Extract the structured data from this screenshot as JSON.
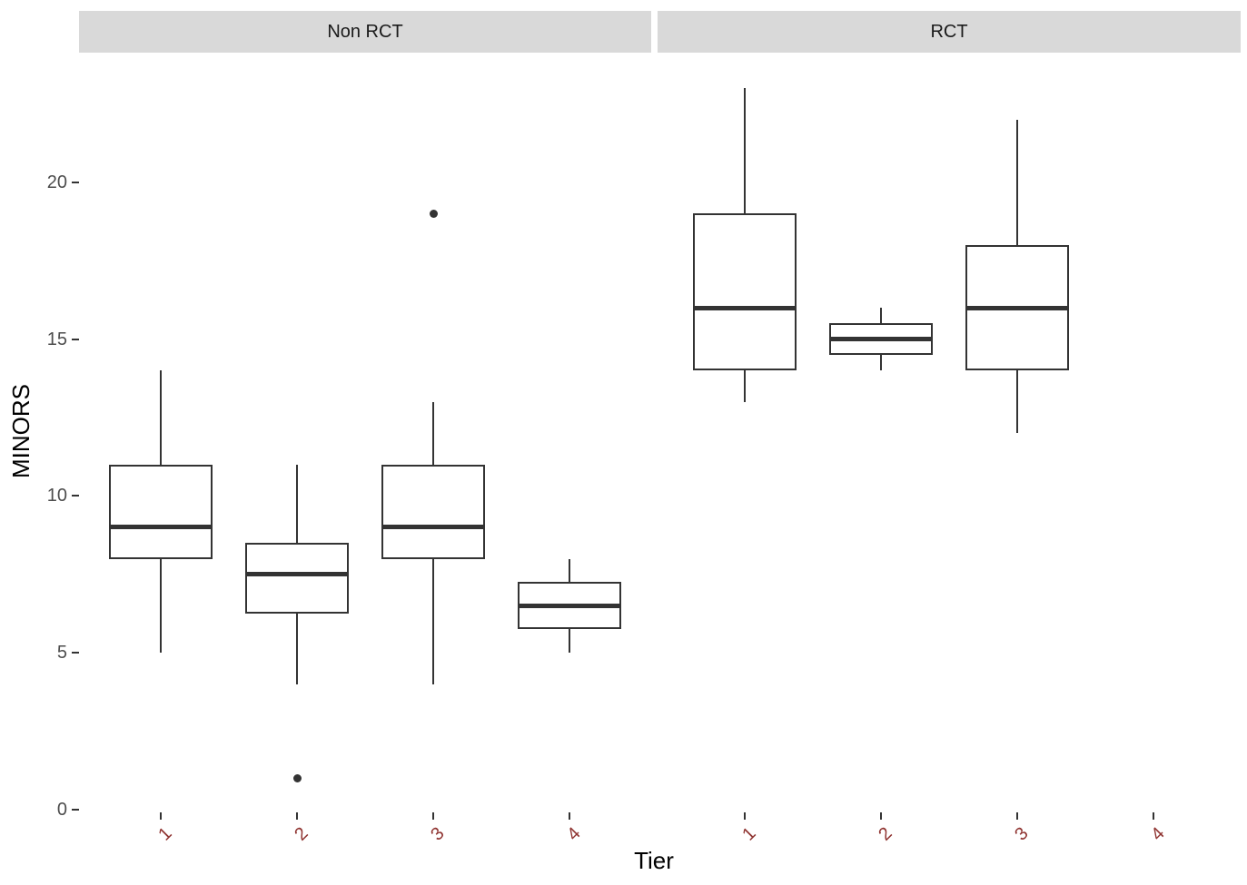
{
  "figure": {
    "background": "#ffffff",
    "strip_background": "#d9d9d9",
    "strip_text_color": "#1a1a1a",
    "axis_number_color": "#4d4d4d",
    "tier_label_color": "#8f3330",
    "box_stroke_color": "#333333",
    "title_color": "#000000"
  },
  "chart_data": {
    "type": "boxplot",
    "title": "",
    "xlabel": "Tier",
    "ylabel": "MINORS",
    "y_ticks": [
      0,
      5,
      10,
      15,
      20
    ],
    "ylim": [
      0,
      23.5
    ],
    "grid": "off",
    "legend": "none",
    "facets": [
      {
        "label": "Non RCT",
        "boxes": [
          {
            "tier": "1",
            "min": 5,
            "q1": 8,
            "median": 9,
            "q3": 11,
            "max": 14,
            "outliers": []
          },
          {
            "tier": "2",
            "min": 4,
            "q1": 6.25,
            "median": 7.5,
            "q3": 8.5,
            "max": 11,
            "outliers": [
              1
            ]
          },
          {
            "tier": "3",
            "min": 4,
            "q1": 8,
            "median": 9,
            "q3": 11,
            "max": 13,
            "outliers": [
              19
            ]
          },
          {
            "tier": "4",
            "min": 5,
            "q1": 5.75,
            "median": 6.5,
            "q3": 7.25,
            "max": 8,
            "outliers": []
          }
        ]
      },
      {
        "label": "RCT",
        "boxes": [
          {
            "tier": "1",
            "min": 13,
            "q1": 14,
            "median": 16,
            "q3": 19,
            "max": 23,
            "outliers": []
          },
          {
            "tier": "2",
            "min": 14,
            "q1": 14.5,
            "median": 15,
            "q3": 15.5,
            "max": 16,
            "outliers": []
          },
          {
            "tier": "3",
            "min": 12,
            "q1": 14,
            "median": 16,
            "q3": 18,
            "max": 22,
            "outliers": []
          },
          {
            "tier": "4",
            "min": null,
            "q1": null,
            "median": null,
            "q3": null,
            "max": null,
            "outliers": []
          }
        ]
      }
    ]
  }
}
